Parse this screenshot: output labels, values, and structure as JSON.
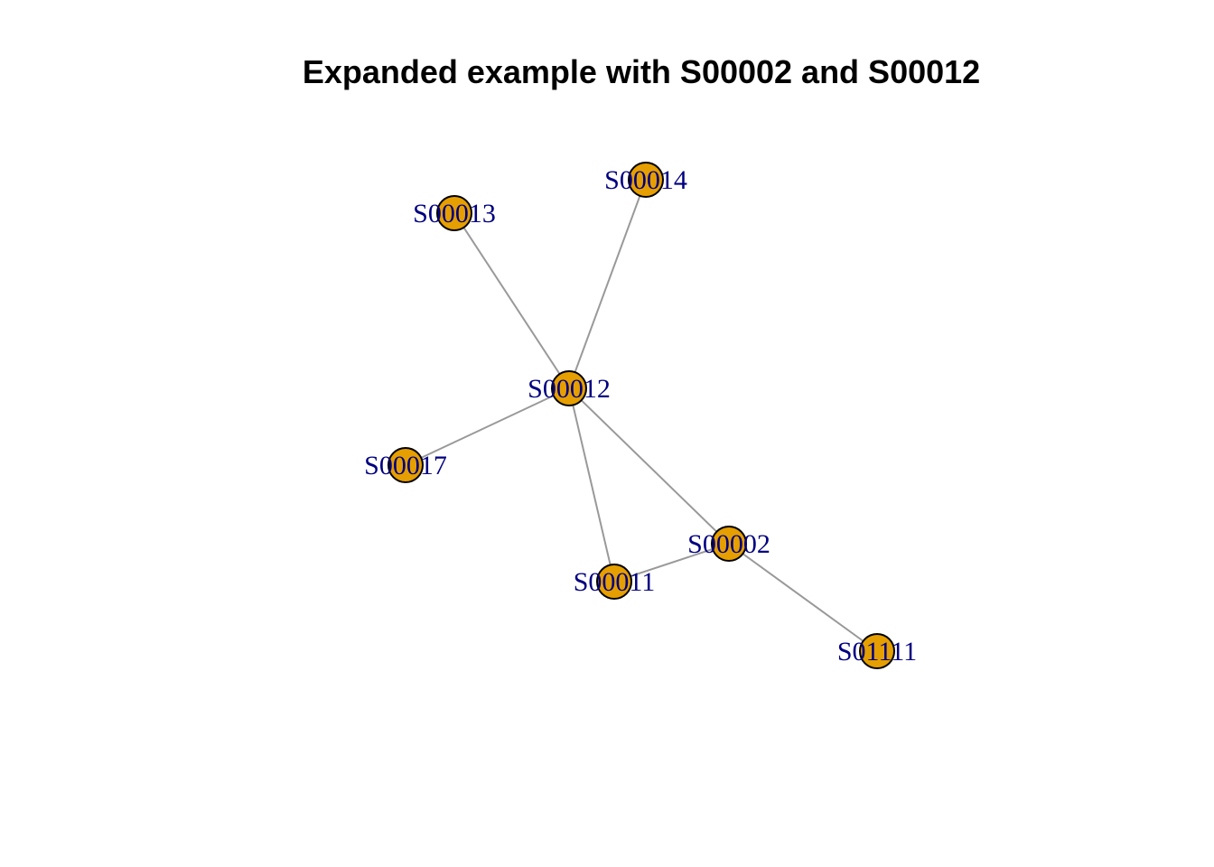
{
  "title": "Expanded example with S00002 and S00012",
  "colors": {
    "node_fill": "#E69F00",
    "edge": "#999999",
    "label": "#000080"
  },
  "graph": {
    "nodes": [
      {
        "id": "S00014",
        "label": "S00014"
      },
      {
        "id": "S00013",
        "label": "S00013"
      },
      {
        "id": "S00012",
        "label": "S00012"
      },
      {
        "id": "S00017",
        "label": "S00017"
      },
      {
        "id": "S00002",
        "label": "S00002"
      },
      {
        "id": "S00011",
        "label": "S00011"
      },
      {
        "id": "S01111",
        "label": "S01111"
      }
    ],
    "edges": [
      {
        "from": "S00012",
        "to": "S00013"
      },
      {
        "from": "S00012",
        "to": "S00014"
      },
      {
        "from": "S00012",
        "to": "S00017"
      },
      {
        "from": "S00012",
        "to": "S00011"
      },
      {
        "from": "S00012",
        "to": "S00002"
      },
      {
        "from": "S00002",
        "to": "S00011"
      },
      {
        "from": "S00002",
        "to": "S01111"
      }
    ]
  }
}
